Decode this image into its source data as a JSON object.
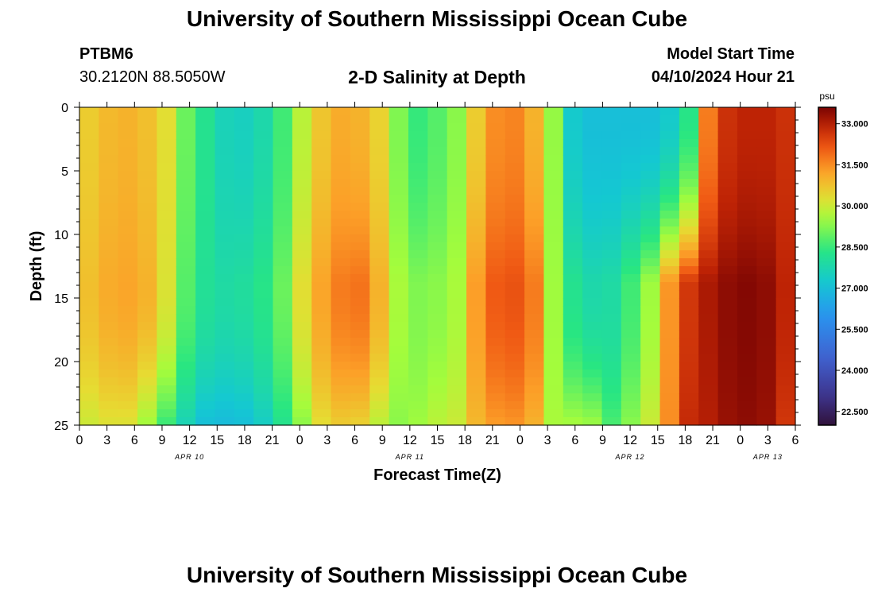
{
  "header": {
    "title": "University of Southern Mississippi Ocean Cube",
    "station": "PTBM6",
    "coordinates": "30.2120N  88.5050W",
    "subtitle": "2-D Salinity at Depth",
    "model_start_label": "Model Start Time",
    "model_start_value": "04/10/2024 Hour 21"
  },
  "footer": {
    "title": "University of Southern Mississippi Ocean Cube"
  },
  "chart_data": {
    "type": "heatmap",
    "title": "2-D Salinity at Depth",
    "xlabel": "Forecast Time(Z)",
    "ylabel": "Depth (ft)",
    "x_ticks": [
      "0",
      "3",
      "6",
      "9",
      "12",
      "15",
      "18",
      "21",
      "0",
      "3",
      "6",
      "9",
      "12",
      "15",
      "18",
      "21",
      "0",
      "3",
      "6",
      "9",
      "12",
      "15",
      "18",
      "21",
      "0",
      "3",
      "6"
    ],
    "date_labels": [
      {
        "label": "APR 10",
        "tick_index": 4
      },
      {
        "label": "APR 11",
        "tick_index": 12
      },
      {
        "label": "APR 12",
        "tick_index": 20
      },
      {
        "label": "APR 13",
        "tick_index": 25
      }
    ],
    "y_ticks": [
      0,
      5,
      10,
      15,
      20,
      25
    ],
    "ylim": [
      0,
      25
    ],
    "y_inverted": true,
    "colorbar": {
      "unit": "psu",
      "ticks": [
        "33.000",
        "31.500",
        "30.000",
        "28.500",
        "27.000",
        "25.500",
        "24.000",
        "22.500"
      ],
      "range": [
        22.0,
        33.6
      ]
    },
    "grid": false,
    "legend": "colorbar-right",
    "columns": [
      {
        "t": 0,
        "top": 30.6,
        "mid": 30.8,
        "bot": 30.0
      },
      {
        "t": 1,
        "top": 30.9,
        "mid": 31.1,
        "bot": 30.2
      },
      {
        "t": 2,
        "top": 31.0,
        "mid": 31.2,
        "bot": 30.2
      },
      {
        "t": 3,
        "top": 30.8,
        "mid": 31.0,
        "bot": 29.5
      },
      {
        "t": 4,
        "top": 30.3,
        "mid": 30.2,
        "bot": 28.5
      },
      {
        "t": 5,
        "top": 29.0,
        "mid": 28.8,
        "bot": 27.6
      },
      {
        "t": 6,
        "top": 28.2,
        "mid": 28.1,
        "bot": 27.0
      },
      {
        "t": 7,
        "top": 27.6,
        "mid": 27.9,
        "bot": 26.9
      },
      {
        "t": 8,
        "top": 27.5,
        "mid": 28.0,
        "bot": 27.0
      },
      {
        "t": 9,
        "top": 27.8,
        "mid": 28.3,
        "bot": 27.4
      },
      {
        "t": 10,
        "top": 28.6,
        "mid": 29.0,
        "bot": 28.2
      },
      {
        "t": 11,
        "top": 29.8,
        "mid": 30.3,
        "bot": 29.3
      },
      {
        "t": 12,
        "top": 30.7,
        "mid": 31.2,
        "bot": 30.3
      },
      {
        "t": 13,
        "top": 31.1,
        "mid": 31.7,
        "bot": 30.6
      },
      {
        "t": 14,
        "top": 31.0,
        "mid": 31.8,
        "bot": 30.5
      },
      {
        "t": 15,
        "top": 30.5,
        "mid": 31.0,
        "bot": 29.8
      },
      {
        "t": 16,
        "top": 29.2,
        "mid": 29.6,
        "bot": 29.3
      },
      {
        "t": 17,
        "top": 28.5,
        "mid": 29.2,
        "bot": 29.5
      },
      {
        "t": 18,
        "top": 28.8,
        "mid": 29.3,
        "bot": 29.8
      },
      {
        "t": 19,
        "top": 29.3,
        "mid": 29.6,
        "bot": 30.0
      },
      {
        "t": 20,
        "top": 30.6,
        "mid": 31.3,
        "bot": 30.9
      },
      {
        "t": 21,
        "top": 31.5,
        "mid": 32.1,
        "bot": 31.3
      },
      {
        "t": 22,
        "top": 31.6,
        "mid": 32.2,
        "bot": 31.4
      },
      {
        "t": 23,
        "top": 31.0,
        "mid": 31.7,
        "bot": 31.0
      },
      {
        "t": 24,
        "top": 29.4,
        "mid": 29.5,
        "bot": 29.6
      },
      {
        "t": 25,
        "top": 27.3,
        "mid": 28.2,
        "bot": 29.6
      },
      {
        "t": 26,
        "top": 27.0,
        "mid": 27.8,
        "bot": 29.5
      },
      {
        "t": 27,
        "top": 27.0,
        "mid": 27.9,
        "bot": 28.7
      },
      {
        "t": 28,
        "top": 27.0,
        "mid": 28.6,
        "bot": 29.3
      },
      {
        "t": 29,
        "top": 27.0,
        "mid": 29.5,
        "bot": 30.0
      },
      {
        "t": 30,
        "top": 27.3,
        "mid": 31.4,
        "bot": 31.5
      },
      {
        "t": 31,
        "top": 28.3,
        "mid": 32.6,
        "bot": 32.8
      },
      {
        "t": 32,
        "top": 31.7,
        "mid": 33.1,
        "bot": 33.0
      },
      {
        "t": 33,
        "top": 32.7,
        "mid": 33.4,
        "bot": 33.3
      },
      {
        "t": 34,
        "top": 32.9,
        "mid": 33.5,
        "bot": 33.4
      },
      {
        "t": 35,
        "top": 32.9,
        "mid": 33.4,
        "bot": 33.3
      },
      {
        "t": 36,
        "top": 32.7,
        "mid": 32.9,
        "bot": 32.6
      }
    ]
  }
}
